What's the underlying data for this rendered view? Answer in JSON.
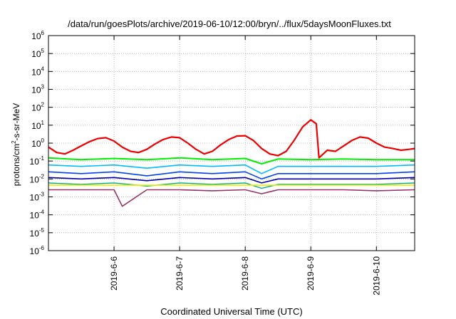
{
  "chart_data": {
    "type": "line",
    "title": "/data/run/goesPlots/archive/2019-06-10/12:00/bryn/../flux/5daysMoonFluxes.txt",
    "xlabel": "Coordinated Universal Time (UTC)",
    "ylabel": {
      "pre": "protons/cm",
      "sup": "2",
      "post": "-s-sr-MeV"
    },
    "x_range": [
      "2019-06-05T00:00",
      "2019-06-10T14:00"
    ],
    "y_range": [
      1e-06,
      1000000.0
    ],
    "y_scale": "log",
    "grid": true,
    "x_ticks": [
      {
        "value": "2019-06-06T00:00",
        "label": "2019-6-6"
      },
      {
        "value": "2019-06-07T00:00",
        "label": "2019-6-7"
      },
      {
        "value": "2019-06-08T00:00",
        "label": "2019-6-8"
      },
      {
        "value": "2019-06-09T00:00",
        "label": "2019-6-9"
      },
      {
        "value": "2019-06-10T00:00",
        "label": "2019-6-10"
      }
    ],
    "y_ticks": [
      {
        "exp": "-6"
      },
      {
        "exp": "-5"
      },
      {
        "exp": "-4"
      },
      {
        "exp": "-3"
      },
      {
        "exp": "-2"
      },
      {
        "exp": "-1"
      },
      {
        "exp": "0"
      },
      {
        "exp": "1"
      },
      {
        "exp": "2"
      },
      {
        "exp": "3"
      },
      {
        "exp": "4"
      },
      {
        "exp": "5"
      },
      {
        "exp": "6"
      }
    ],
    "series": [
      {
        "color": "#ee0000",
        "width": 2.2,
        "x": [
          "2019-06-05T00:00",
          "2019-06-05T03:00",
          "2019-06-05T06:00",
          "2019-06-05T09:00",
          "2019-06-05T12:00",
          "2019-06-05T15:00",
          "2019-06-05T18:00",
          "2019-06-05T21:00",
          "2019-06-06T00:00",
          "2019-06-06T03:00",
          "2019-06-06T06:00",
          "2019-06-06T09:00",
          "2019-06-06T12:00",
          "2019-06-06T15:00",
          "2019-06-06T18:00",
          "2019-06-06T21:00",
          "2019-06-07T00:00",
          "2019-06-07T03:00",
          "2019-06-07T06:00",
          "2019-06-07T09:00",
          "2019-06-07T12:00",
          "2019-06-07T15:00",
          "2019-06-07T18:00",
          "2019-06-07T21:00",
          "2019-06-08T00:00",
          "2019-06-08T03:00",
          "2019-06-08T06:00",
          "2019-06-08T09:00",
          "2019-06-08T12:00",
          "2019-06-08T15:00",
          "2019-06-08T18:00",
          "2019-06-08T21:00",
          "2019-06-09T00:00",
          "2019-06-09T02:00",
          "2019-06-09T03:00",
          "2019-06-09T06:00",
          "2019-06-09T09:00",
          "2019-06-09T12:00",
          "2019-06-09T15:00",
          "2019-06-09T18:00",
          "2019-06-09T21:00",
          "2019-06-10T00:00",
          "2019-06-10T03:00",
          "2019-06-10T06:00",
          "2019-06-10T09:00",
          "2019-06-10T12:00",
          "2019-06-10T14:00"
        ],
        "y": [
          0.6,
          0.3,
          0.25,
          0.4,
          0.7,
          1.2,
          1.8,
          2.0,
          1.3,
          0.6,
          0.35,
          0.3,
          0.45,
          0.9,
          1.6,
          2.2,
          2.0,
          1.0,
          0.45,
          0.25,
          0.35,
          0.8,
          1.6,
          2.5,
          2.6,
          1.4,
          0.5,
          0.25,
          0.2,
          0.35,
          1.5,
          8,
          20,
          12,
          0.15,
          0.4,
          0.35,
          0.7,
          1.4,
          2.2,
          1.9,
          1.0,
          0.6,
          0.5,
          0.4,
          0.45,
          0.5
        ]
      },
      {
        "color": "#00ee00",
        "width": 2.0,
        "x": [
          "2019-06-05T00:00",
          "2019-06-05T12:00",
          "2019-06-06T00:00",
          "2019-06-06T12:00",
          "2019-06-07T00:00",
          "2019-06-07T12:00",
          "2019-06-08T00:00",
          "2019-06-08T06:00",
          "2019-06-08T12:00",
          "2019-06-09T00:00",
          "2019-06-09T12:00",
          "2019-06-10T00:00",
          "2019-06-10T14:00"
        ],
        "y": [
          0.15,
          0.12,
          0.14,
          0.12,
          0.15,
          0.12,
          0.14,
          0.07,
          0.13,
          0.12,
          0.13,
          0.12,
          0.12
        ]
      },
      {
        "color": "#00bbff",
        "width": 1.6,
        "x": [
          "2019-06-05T00:00",
          "2019-06-05T12:00",
          "2019-06-06T00:00",
          "2019-06-06T12:00",
          "2019-06-07T00:00",
          "2019-06-07T12:00",
          "2019-06-08T00:00",
          "2019-06-08T06:00",
          "2019-06-08T12:00",
          "2019-06-09T00:00",
          "2019-06-09T12:00",
          "2019-06-10T00:00",
          "2019-06-10T14:00"
        ],
        "y": [
          0.06,
          0.05,
          0.06,
          0.04,
          0.06,
          0.05,
          0.06,
          0.02,
          0.05,
          0.05,
          0.05,
          0.05,
          0.06
        ]
      },
      {
        "color": "#0044ee",
        "width": 1.6,
        "x": [
          "2019-06-05T00:00",
          "2019-06-05T12:00",
          "2019-06-06T00:00",
          "2019-06-06T12:00",
          "2019-06-07T00:00",
          "2019-06-07T12:00",
          "2019-06-08T00:00",
          "2019-06-08T06:00",
          "2019-06-08T12:00",
          "2019-06-09T00:00",
          "2019-06-09T12:00",
          "2019-06-10T00:00",
          "2019-06-10T14:00"
        ],
        "y": [
          0.025,
          0.02,
          0.025,
          0.015,
          0.025,
          0.02,
          0.025,
          0.01,
          0.02,
          0.02,
          0.02,
          0.02,
          0.025
        ]
      },
      {
        "color": "#0000aa",
        "width": 1.6,
        "x": [
          "2019-06-05T00:00",
          "2019-06-05T12:00",
          "2019-06-06T00:00",
          "2019-06-06T12:00",
          "2019-06-07T00:00",
          "2019-06-07T12:00",
          "2019-06-08T00:00",
          "2019-06-08T06:00",
          "2019-06-08T12:00",
          "2019-06-09T00:00",
          "2019-06-09T12:00",
          "2019-06-10T00:00",
          "2019-06-10T14:00"
        ],
        "y": [
          0.012,
          0.01,
          0.012,
          0.008,
          0.012,
          0.01,
          0.012,
          0.006,
          0.01,
          0.01,
          0.01,
          0.01,
          0.012
        ]
      },
      {
        "color": "#00aa88",
        "width": 1.4,
        "x": [
          "2019-06-05T00:00",
          "2019-06-05T12:00",
          "2019-06-06T00:00",
          "2019-06-06T12:00",
          "2019-06-07T00:00",
          "2019-06-07T12:00",
          "2019-06-08T00:00",
          "2019-06-08T06:00",
          "2019-06-08T12:00",
          "2019-06-09T00:00",
          "2019-06-09T12:00",
          "2019-06-10T00:00",
          "2019-06-10T14:00"
        ],
        "y": [
          0.006,
          0.005,
          0.006,
          0.004,
          0.006,
          0.005,
          0.006,
          0.003,
          0.005,
          0.005,
          0.005,
          0.005,
          0.006
        ]
      },
      {
        "color": "#eeee00",
        "width": 1.6,
        "x": [
          "2019-06-05T00:00",
          "2019-06-06T00:00",
          "2019-06-07T00:00",
          "2019-06-08T00:00",
          "2019-06-09T00:00",
          "2019-06-10T00:00",
          "2019-06-10T14:00"
        ],
        "y": [
          0.0045,
          0.0045,
          0.0045,
          0.0045,
          0.0045,
          0.0045,
          0.0045
        ]
      },
      {
        "color": "#993366",
        "width": 1.6,
        "x": [
          "2019-06-05T00:00",
          "2019-06-05T12:00",
          "2019-06-06T00:00",
          "2019-06-06T03:00",
          "2019-06-06T12:00",
          "2019-06-07T00:00",
          "2019-06-07T12:00",
          "2019-06-08T00:00",
          "2019-06-08T06:00",
          "2019-06-08T12:00",
          "2019-06-09T00:00",
          "2019-06-09T12:00",
          "2019-06-10T00:00",
          "2019-06-10T14:00"
        ],
        "y": [
          0.0025,
          0.0025,
          0.0025,
          0.0003,
          0.0025,
          0.0025,
          0.0022,
          0.0025,
          0.0015,
          0.0025,
          0.0025,
          0.0025,
          0.0022,
          0.0025
        ]
      }
    ]
  }
}
